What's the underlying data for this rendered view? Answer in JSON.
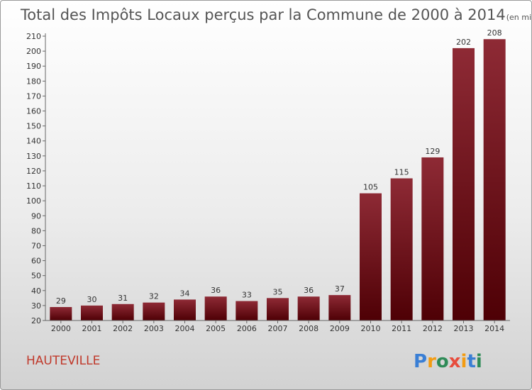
{
  "chart_data": {
    "type": "bar",
    "title": "Total des Impôts Locaux perçus par la Commune de 2000 à 2014",
    "subtitle": "(en milliers d'€)",
    "categories": [
      "2000",
      "2001",
      "2002",
      "2003",
      "2004",
      "2005",
      "2006",
      "2007",
      "2008",
      "2009",
      "2010",
      "2011",
      "2012",
      "2013",
      "2014"
    ],
    "values": [
      29,
      30,
      31,
      32,
      34,
      36,
      33,
      35,
      36,
      37,
      105,
      115,
      129,
      202,
      208
    ],
    "value_labels": [
      "29",
      "30",
      "31",
      "32",
      "34",
      "36",
      "33",
      "35",
      "36",
      "37",
      "105",
      "115",
      "129",
      "202",
      "208"
    ],
    "y_ticks": [
      "20",
      "30",
      "40",
      "50",
      "60",
      "70",
      "80",
      "90",
      "100",
      "110",
      "120",
      "130",
      "140",
      "150",
      "160",
      "170",
      "180",
      "190",
      "200",
      "210"
    ],
    "ylim": [
      20,
      210
    ],
    "xlabel": "",
    "ylabel": "",
    "grid": false,
    "bar_color": "#6e0a12"
  },
  "commune": "HAUTEVILLE",
  "logo": {
    "letters": [
      "P",
      "r",
      "o",
      "x",
      "i",
      "t",
      "i"
    ],
    "colors": [
      "#3a7fd5",
      "#f39c12",
      "#2e8b57",
      "#e74c3c",
      "#f39c12",
      "#3a7fd5",
      "#2e8b57"
    ]
  }
}
